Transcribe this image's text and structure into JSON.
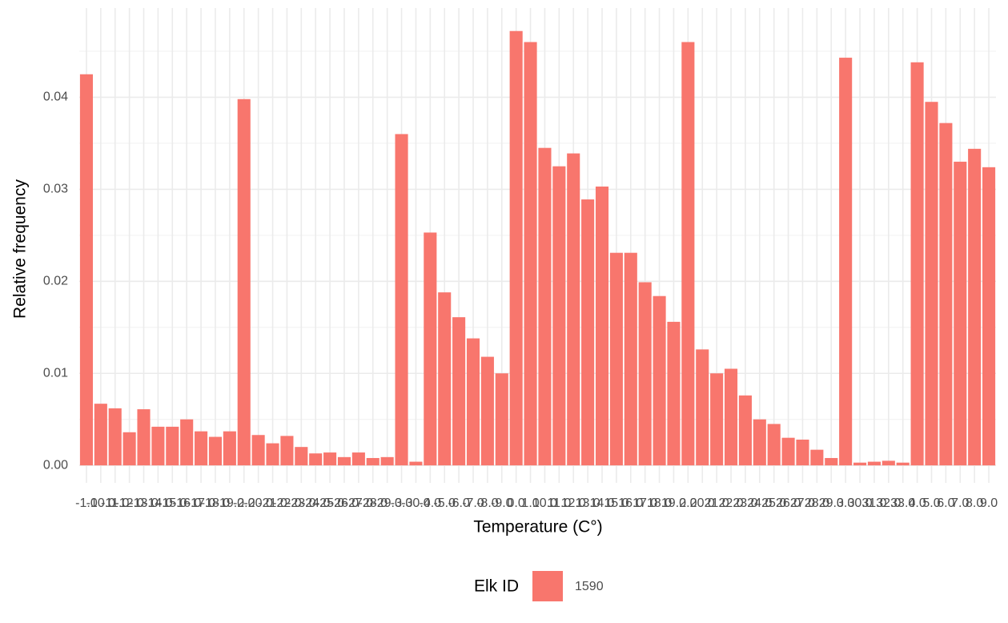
{
  "chart_data": {
    "type": "bar",
    "x_label": "Temperature (C°)",
    "y_label": "Relative frequency",
    "legend_title": "Elk ID",
    "legend_position": "bottom",
    "grid": true,
    "series": [
      {
        "name": "1590",
        "color": "#F8766D",
        "values": [
          0.0425,
          0.0067,
          0.0062,
          0.0036,
          0.0061,
          0.0042,
          0.0042,
          0.005,
          0.0037,
          0.0031,
          0.0037,
          0.0398,
          0.0033,
          0.0024,
          0.0032,
          0.002,
          0.0013,
          0.0014,
          0.0009,
          0.0014,
          0.0008,
          0.0009,
          0.036,
          0.0004,
          0.0253,
          0.0188,
          0.0161,
          0.0138,
          0.0118,
          0.01,
          0.0472,
          0.046,
          0.0345,
          0.0325,
          0.0339,
          0.0289,
          0.0303,
          0.0231,
          0.0231,
          0.0199,
          0.0184,
          0.0156,
          0.046,
          0.0126,
          0.01,
          0.0105,
          0.0076,
          0.005,
          0.0045,
          0.003,
          0.0028,
          0.0017,
          0.0008,
          0.0443,
          0.0003,
          0.0004,
          0.0005,
          0.0003,
          0.0438,
          0.0395,
          0.0372,
          0.033,
          0.0344,
          0.0324
        ]
      }
    ],
    "categories": [
      "-1.0",
      "-10.0",
      "-11.0",
      "-12.0",
      "-13.0",
      "-14.0",
      "-15.0",
      "-16.0",
      "-17.0",
      "-18.0",
      "-19.0",
      "-2.0",
      "-20.0",
      "-21.0",
      "-22.0",
      "-23.0",
      "-24.0",
      "-25.0",
      "-26.0",
      "-27.0",
      "-28.0",
      "-29.0",
      "-3.0",
      "-30.0",
      "-4.0",
      "-5.0",
      "-6.0",
      "-7.0",
      "-8.0",
      "-9.0",
      "0.0",
      "1.0",
      "10.0",
      "11.0",
      "12.0",
      "13.0",
      "14.0",
      "15.0",
      "16.0",
      "17.0",
      "18.0",
      "19.0",
      "2.0",
      "20.0",
      "21.0",
      "22.0",
      "23.0",
      "24.0",
      "25.0",
      "26.0",
      "27.0",
      "28.0",
      "29.0",
      "3.0",
      "30.0",
      "31.0",
      "32.0",
      "33.0",
      "4.0",
      "5.0",
      "6.0",
      "7.0",
      "8.0",
      "9.0"
    ],
    "ylim": [
      -0.0019,
      0.0497
    ],
    "yticks": [
      {
        "value": 0,
        "label": "0.00"
      },
      0.01,
      0.02,
      0.03,
      0.04
    ]
  }
}
